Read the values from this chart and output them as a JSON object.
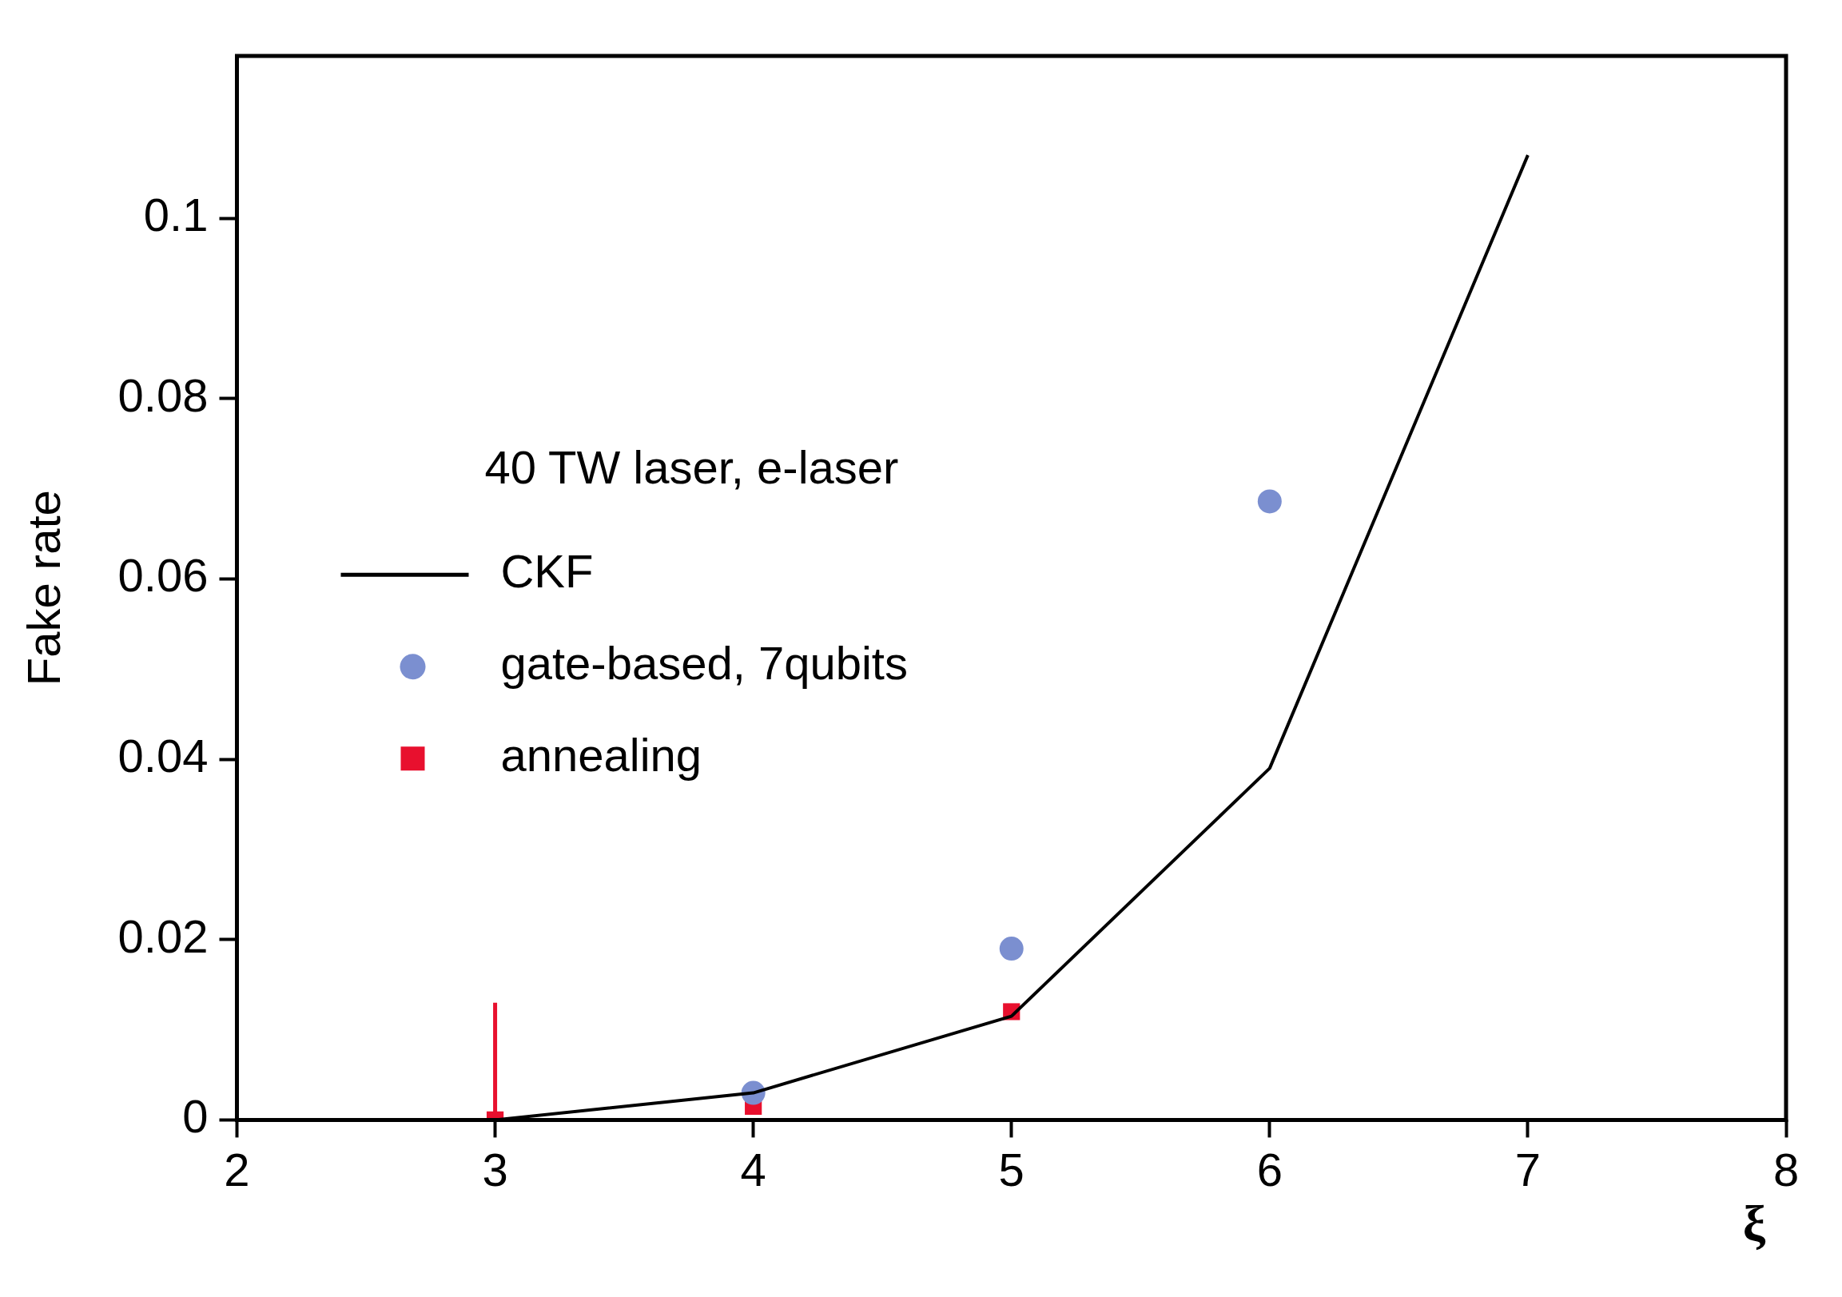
{
  "chart_data": {
    "type": "line",
    "xlabel": "ξ",
    "ylabel": "Fake rate",
    "legend_title": "40 TW laser, e-laser",
    "legend": "left",
    "grid": false,
    "xlim": [
      2,
      8
    ],
    "xticks": [
      2,
      3,
      4,
      5,
      6,
      7,
      8
    ],
    "ylim": [
      0,
      0.118
    ],
    "yticks": [
      0,
      0.02,
      0.04,
      0.06,
      0.08,
      0.1
    ],
    "series": [
      {
        "name": "CKF",
        "type": "line",
        "color": "#000000",
        "marker": "none",
        "x": [
          3,
          4,
          5,
          6,
          7
        ],
        "values": [
          0,
          0.003,
          0.0115,
          0.039,
          0.107
        ]
      },
      {
        "name": "gate-based, 7qubits",
        "type": "scatter",
        "color": "#7b8fd0",
        "marker": "circle",
        "x": [
          4,
          5,
          6
        ],
        "values": [
          0.003,
          0.019,
          0.0686
        ]
      },
      {
        "name": "annealing",
        "type": "scatter",
        "color": "#e8102e",
        "marker": "square",
        "x": [
          3,
          4,
          5
        ],
        "values": [
          0,
          0.0015,
          0.012
        ],
        "errors": [
          [
            0,
            0.013
          ],
          null,
          null
        ]
      }
    ]
  }
}
